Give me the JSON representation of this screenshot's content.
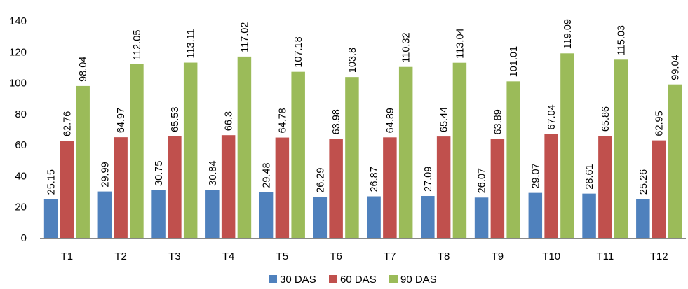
{
  "chart_data": {
    "type": "bar",
    "title": "",
    "xlabel": "",
    "ylabel": "",
    "categories": [
      "T1",
      "T2",
      "T3",
      "T4",
      "T5",
      "T6",
      "T7",
      "T8",
      "T9",
      "T10",
      "T11",
      "T12"
    ],
    "series": [
      {
        "name": "30 DAS",
        "color": "#4f81bd",
        "values": [
          25.15,
          29.99,
          30.75,
          30.84,
          29.48,
          26.29,
          26.87,
          27.09,
          26.07,
          29.07,
          28.61,
          25.26
        ],
        "labels": [
          "25.15",
          "29.99",
          "30.75",
          "30.84",
          "29.48",
          "26.29",
          "26.87",
          "27.09",
          "26.07",
          "29.07",
          "28.61",
          "25.26"
        ]
      },
      {
        "name": "60 DAS",
        "color": "#c0504d",
        "values": [
          62.76,
          64.97,
          65.53,
          66.3,
          64.78,
          63.98,
          64.89,
          65.44,
          63.89,
          67.04,
          65.86,
          62.95
        ],
        "labels": [
          "62.76",
          "64.97",
          "65.53",
          "66.3",
          "64.78",
          "63.98",
          "64.89",
          "65.44",
          "63.89",
          "67.04",
          "65.86",
          "62.95"
        ]
      },
      {
        "name": "90 DAS",
        "color": "#9bbb59",
        "values": [
          98.04,
          112.05,
          113.11,
          117.02,
          107.18,
          103.8,
          110.32,
          113.04,
          101.01,
          119.09,
          115.03,
          99.04
        ],
        "labels": [
          "98.04",
          "112.05",
          "113.11",
          "117.02",
          "107.18",
          "103.8",
          "110.32",
          "113.04",
          "101.01",
          "119.09",
          "115.03",
          "99.04"
        ]
      }
    ],
    "ylim": [
      0,
      140
    ],
    "yticks": [
      0,
      20,
      40,
      60,
      80,
      100,
      120,
      140
    ],
    "grid": false,
    "legend": "bottom-center",
    "data_labels": "vertical above bars"
  }
}
